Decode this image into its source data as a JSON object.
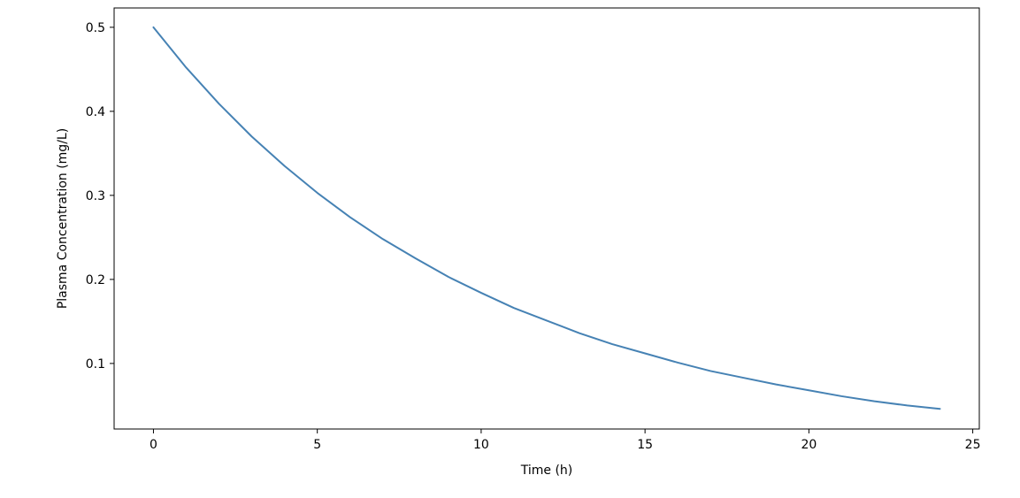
{
  "chart_data": {
    "type": "line",
    "title": "",
    "xlabel": "Time (h)",
    "ylabel": "Plasma Concentration (mg/L)",
    "xlim": [
      -1.2,
      25.2
    ],
    "ylim": [
      0.022,
      0.523
    ],
    "xticks": [
      0,
      5,
      10,
      15,
      20,
      25
    ],
    "xtick_labels": [
      "0",
      "5",
      "10",
      "15",
      "20",
      "25"
    ],
    "yticks": [
      0.1,
      0.2,
      0.3,
      0.4,
      0.5
    ],
    "ytick_labels": [
      "0.1",
      "0.2",
      "0.3",
      "0.4",
      "0.5"
    ],
    "grid": false,
    "legend": "none",
    "series": [
      {
        "color": "#4682b4",
        "x": [
          0,
          1,
          2,
          3,
          4,
          5,
          6,
          7,
          8,
          9,
          10,
          11,
          12,
          13,
          14,
          15,
          16,
          17,
          18,
          19,
          20,
          21,
          22,
          23,
          24
        ],
        "y": [
          0.5,
          0.452,
          0.409,
          0.37,
          0.335,
          0.303,
          0.274,
          0.248,
          0.225,
          0.203,
          0.184,
          0.166,
          0.151,
          0.136,
          0.123,
          0.112,
          0.101,
          0.091,
          0.083,
          0.075,
          0.068,
          0.061,
          0.055,
          0.05,
          0.046
        ]
      }
    ]
  }
}
